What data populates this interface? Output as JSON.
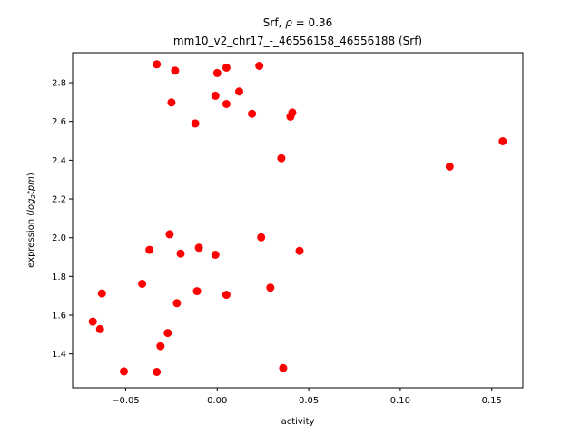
{
  "chart_data": {
    "type": "scatter",
    "title_line1_prefix": "Srf, ",
    "title_line1_rho": "ρ",
    "title_line1_suffix": " = 0.36",
    "title_line2": "mm10_v2_chr17_-_46556158_46556188 (Srf)",
    "xlabel": "activity",
    "ylabel_prefix": "expression (",
    "ylabel_log": "log",
    "ylabel_sub": "2",
    "ylabel_tpm": "tpm",
    "ylabel_suffix": ")",
    "xlim": [
      -0.079,
      0.167
    ],
    "ylim": [
      1.225,
      2.955
    ],
    "xticks": [
      -0.05,
      0.0,
      0.05,
      0.1,
      0.15
    ],
    "xtick_labels": [
      "−0.05",
      "0.00",
      "0.05",
      "0.10",
      "0.15"
    ],
    "yticks": [
      1.4,
      1.6,
      1.8,
      2.0,
      2.2,
      2.4,
      2.6,
      2.8
    ],
    "ytick_labels": [
      "1.4",
      "1.6",
      "1.8",
      "2.0",
      "2.2",
      "2.4",
      "2.6",
      "2.8"
    ],
    "point_color": "#ff0000",
    "grid": false,
    "points": [
      {
        "x": -0.033,
        "y": 2.895
      },
      {
        "x": -0.023,
        "y": 2.862
      },
      {
        "x": 0.005,
        "y": 2.878
      },
      {
        "x": 0.023,
        "y": 2.887
      },
      {
        "x": 0.0,
        "y": 2.85
      },
      {
        "x": 0.012,
        "y": 2.755
      },
      {
        "x": -0.001,
        "y": 2.733
      },
      {
        "x": -0.025,
        "y": 2.698
      },
      {
        "x": 0.005,
        "y": 2.69
      },
      {
        "x": 0.019,
        "y": 2.64
      },
      {
        "x": 0.041,
        "y": 2.646
      },
      {
        "x": 0.04,
        "y": 2.625
      },
      {
        "x": -0.012,
        "y": 2.59
      },
      {
        "x": 0.156,
        "y": 2.498
      },
      {
        "x": 0.035,
        "y": 2.41
      },
      {
        "x": 0.127,
        "y": 2.367
      },
      {
        "x": -0.026,
        "y": 2.018
      },
      {
        "x": 0.024,
        "y": 2.002
      },
      {
        "x": -0.037,
        "y": 1.937
      },
      {
        "x": -0.01,
        "y": 1.948
      },
      {
        "x": -0.02,
        "y": 1.918
      },
      {
        "x": -0.001,
        "y": 1.912
      },
      {
        "x": 0.045,
        "y": 1.932
      },
      {
        "x": -0.041,
        "y": 1.762
      },
      {
        "x": 0.029,
        "y": 1.742
      },
      {
        "x": -0.011,
        "y": 1.724
      },
      {
        "x": -0.063,
        "y": 1.712
      },
      {
        "x": 0.005,
        "y": 1.705
      },
      {
        "x": -0.022,
        "y": 1.662
      },
      {
        "x": -0.068,
        "y": 1.567
      },
      {
        "x": -0.064,
        "y": 1.528
      },
      {
        "x": -0.027,
        "y": 1.508
      },
      {
        "x": -0.031,
        "y": 1.44
      },
      {
        "x": 0.036,
        "y": 1.327
      },
      {
        "x": -0.051,
        "y": 1.31
      },
      {
        "x": -0.033,
        "y": 1.307
      }
    ]
  }
}
